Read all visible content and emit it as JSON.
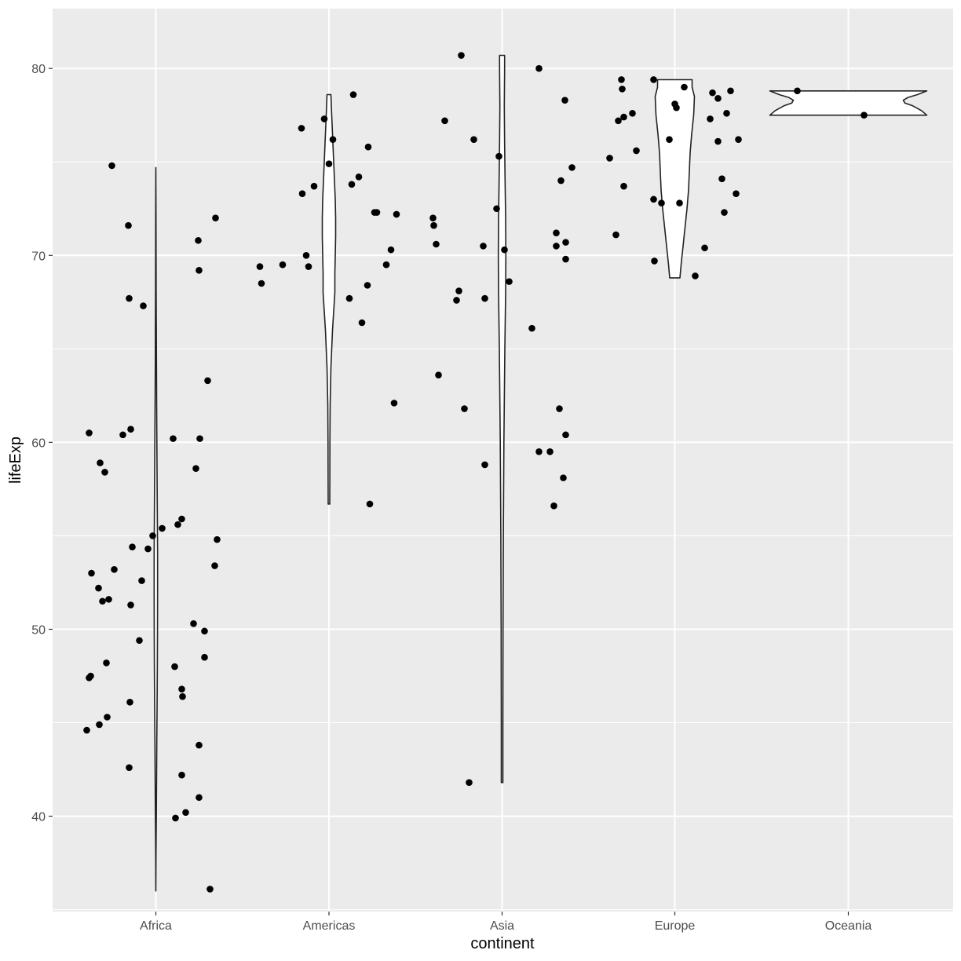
{
  "chart_data": {
    "type": "scatter",
    "geoms": [
      "violin",
      "jitter-points"
    ],
    "xlabel": "continent",
    "ylabel": "lifeExp",
    "categories": [
      "Africa",
      "Americas",
      "Asia",
      "Europe",
      "Oceania"
    ],
    "ylim": [
      34.9,
      83.2
    ],
    "y_ticks": [
      40,
      50,
      60,
      70,
      80
    ],
    "grid": true,
    "colors": {
      "panel": "#ebebeb",
      "grid": "#ffffff",
      "points": "#000000",
      "violin_fill": "#ffffff",
      "violin_line": "#222222",
      "tick_text": "#4d4d4d"
    },
    "violins": [
      {
        "category": "Africa",
        "min": 36.0,
        "max": 74.7,
        "profile": [
          [
            36.0,
            0
          ],
          [
            38,
            0.2
          ],
          [
            40,
            0.6
          ],
          [
            42,
            0.9
          ],
          [
            44,
            1.2
          ],
          [
            46,
            1.6
          ],
          [
            48,
            1.9
          ],
          [
            50,
            2.1
          ],
          [
            52,
            2.2
          ],
          [
            54,
            2.2
          ],
          [
            56,
            1.9
          ],
          [
            58,
            1.6
          ],
          [
            60,
            1.3
          ],
          [
            62,
            1.0
          ],
          [
            64,
            0.75
          ],
          [
            66,
            0.55
          ],
          [
            68,
            0.45
          ],
          [
            70,
            0.35
          ],
          [
            72,
            0.2
          ],
          [
            74.7,
            0
          ]
        ]
      },
      {
        "category": "Americas",
        "min": 56.7,
        "max": 78.6,
        "profile": [
          [
            56.7,
            1
          ],
          [
            58,
            1.1
          ],
          [
            60,
            1.2
          ],
          [
            62,
            1.5
          ],
          [
            64,
            2.5
          ],
          [
            66,
            4.5
          ],
          [
            67,
            6
          ],
          [
            68,
            7.5
          ],
          [
            69,
            7.5
          ],
          [
            70,
            8
          ],
          [
            71,
            8.5
          ],
          [
            72,
            8.5
          ],
          [
            73,
            8
          ],
          [
            74,
            7
          ],
          [
            75,
            6
          ],
          [
            76,
            5
          ],
          [
            77,
            4
          ],
          [
            78,
            3
          ],
          [
            78.6,
            2.5
          ]
        ]
      },
      {
        "category": "Asia",
        "min": 41.8,
        "max": 80.7,
        "profile": [
          [
            41.8,
            1
          ],
          [
            45,
            1
          ],
          [
            50,
            1.2
          ],
          [
            55,
            1.6
          ],
          [
            60,
            2.3
          ],
          [
            65,
            3.5
          ],
          [
            68,
            4.5
          ],
          [
            70,
            4.8
          ],
          [
            72,
            4.5
          ],
          [
            74,
            3.8
          ],
          [
            76,
            3.2
          ],
          [
            78,
            2.8
          ],
          [
            80,
            3.2
          ],
          [
            80.7,
            3.2
          ]
        ]
      },
      {
        "category": "Europe",
        "min": 68.8,
        "max": 79.4,
        "profile": [
          [
            68.8,
            6.5
          ],
          [
            69.5,
            8
          ],
          [
            70.5,
            10.5
          ],
          [
            71.5,
            13
          ],
          [
            72.5,
            15.5
          ],
          [
            73.5,
            17.5
          ],
          [
            74.5,
            18.5
          ],
          [
            75.5,
            19.5
          ],
          [
            76.5,
            21.5
          ],
          [
            77.5,
            24
          ],
          [
            78.5,
            25
          ],
          [
            79,
            22
          ],
          [
            79.4,
            22
          ]
        ]
      },
      {
        "category": "Oceania",
        "min": 77.5,
        "max": 78.8,
        "profile": [
          [
            77.5,
            100
          ],
          [
            77.75,
            93
          ],
          [
            78.0,
            82
          ],
          [
            78.15,
            72
          ],
          [
            78.3,
            70
          ],
          [
            78.45,
            76
          ],
          [
            78.6,
            88
          ],
          [
            78.8,
            100
          ]
        ]
      }
    ],
    "points": [
      {
        "x": "Africa",
        "y": 74.8,
        "dx": -56
      },
      {
        "x": "Africa",
        "y": 71.6,
        "dx": -35
      },
      {
        "x": "Africa",
        "y": 67.7,
        "dx": -34
      },
      {
        "x": "Africa",
        "y": 67.3,
        "dx": -16
      },
      {
        "x": "Africa",
        "y": 60.5,
        "dx": -85
      },
      {
        "x": "Africa",
        "y": 60.4,
        "dx": -42
      },
      {
        "x": "Africa",
        "y": 60.7,
        "dx": -32
      },
      {
        "x": "Africa",
        "y": 58.9,
        "dx": -71
      },
      {
        "x": "Africa",
        "y": 58.4,
        "dx": -65
      },
      {
        "x": "Africa",
        "y": 55.0,
        "dx": -4
      },
      {
        "x": "Africa",
        "y": 55.4,
        "dx": 8
      },
      {
        "x": "Africa",
        "y": 54.3,
        "dx": -10
      },
      {
        "x": "Africa",
        "y": 54.4,
        "dx": -30
      },
      {
        "x": "Africa",
        "y": 53.0,
        "dx": -82
      },
      {
        "x": "Africa",
        "y": 53.2,
        "dx": -53
      },
      {
        "x": "Africa",
        "y": 52.6,
        "dx": -18
      },
      {
        "x": "Africa",
        "y": 52.2,
        "dx": -73
      },
      {
        "x": "Africa",
        "y": 51.5,
        "dx": -68
      },
      {
        "x": "Africa",
        "y": 51.6,
        "dx": -60
      },
      {
        "x": "Africa",
        "y": 51.3,
        "dx": -32
      },
      {
        "x": "Africa",
        "y": 49.4,
        "dx": -21
      },
      {
        "x": "Africa",
        "y": 48.2,
        "dx": -63
      },
      {
        "x": "Africa",
        "y": 47.5,
        "dx": -83
      },
      {
        "x": "Africa",
        "y": 47.4,
        "dx": -85
      },
      {
        "x": "Africa",
        "y": 46.1,
        "dx": -33
      },
      {
        "x": "Africa",
        "y": 45.3,
        "dx": -62
      },
      {
        "x": "Africa",
        "y": 44.9,
        "dx": -72
      },
      {
        "x": "Africa",
        "y": 44.6,
        "dx": -88
      },
      {
        "x": "Africa",
        "y": 42.6,
        "dx": -34
      },
      {
        "x": "Africa",
        "y": 60.2,
        "dx": 22
      },
      {
        "x": "Africa",
        "y": 55.6,
        "dx": 28
      },
      {
        "x": "Africa",
        "y": 55.9,
        "dx": 33
      },
      {
        "x": "Africa",
        "y": 48.0,
        "dx": 24
      },
      {
        "x": "Africa",
        "y": 46.8,
        "dx": 33
      },
      {
        "x": "Africa",
        "y": 46.4,
        "dx": 34
      },
      {
        "x": "Africa",
        "y": 42.2,
        "dx": 33
      },
      {
        "x": "Africa",
        "y": 40.2,
        "dx": 38
      },
      {
        "x": "Africa",
        "y": 39.9,
        "dx": 25
      },
      {
        "x": "Africa",
        "y": 50.3,
        "dx": 48
      },
      {
        "x": "Africa",
        "y": 49.9,
        "dx": 62
      },
      {
        "x": "Africa",
        "y": 48.5,
        "dx": 62
      },
      {
        "x": "Africa",
        "y": 43.8,
        "dx": 55
      },
      {
        "x": "Africa",
        "y": 41.0,
        "dx": 55
      },
      {
        "x": "Africa",
        "y": 36.1,
        "dx": 69
      },
      {
        "x": "Africa",
        "y": 58.6,
        "dx": 51
      },
      {
        "x": "Africa",
        "y": 60.2,
        "dx": 56
      },
      {
        "x": "Africa",
        "y": 63.3,
        "dx": 66
      },
      {
        "x": "Africa",
        "y": 54.8,
        "dx": 78
      },
      {
        "x": "Africa",
        "y": 53.4,
        "dx": 75
      },
      {
        "x": "Africa",
        "y": 70.8,
        "dx": 54
      },
      {
        "x": "Africa",
        "y": 69.2,
        "dx": 55
      },
      {
        "x": "Africa",
        "y": 72.0,
        "dx": 76
      },
      {
        "x": "Americas",
        "y": 76.8,
        "dx": -35
      },
      {
        "x": "Americas",
        "y": 73.3,
        "dx": -34
      },
      {
        "x": "Americas",
        "y": 73.7,
        "dx": -19
      },
      {
        "x": "Americas",
        "y": 70.0,
        "dx": -29
      },
      {
        "x": "Americas",
        "y": 69.4,
        "dx": -26
      },
      {
        "x": "Americas",
        "y": 69.5,
        "dx": -59
      },
      {
        "x": "Americas",
        "y": 69.4,
        "dx": -88
      },
      {
        "x": "Americas",
        "y": 68.5,
        "dx": -86
      },
      {
        "x": "Americas",
        "y": 77.3,
        "dx": -6
      },
      {
        "x": "Americas",
        "y": 76.2,
        "dx": 5
      },
      {
        "x": "Americas",
        "y": 74.9,
        "dx": 0
      },
      {
        "x": "Americas",
        "y": 78.6,
        "dx": 31
      },
      {
        "x": "Americas",
        "y": 73.8,
        "dx": 29
      },
      {
        "x": "Americas",
        "y": 74.2,
        "dx": 38
      },
      {
        "x": "Americas",
        "y": 75.8,
        "dx": 50
      },
      {
        "x": "Americas",
        "y": 72.3,
        "dx": 58
      },
      {
        "x": "Americas",
        "y": 72.3,
        "dx": 61
      },
      {
        "x": "Americas",
        "y": 72.2,
        "dx": 86
      },
      {
        "x": "Americas",
        "y": 70.3,
        "dx": 79
      },
      {
        "x": "Americas",
        "y": 69.5,
        "dx": 73
      },
      {
        "x": "Americas",
        "y": 68.4,
        "dx": 49
      },
      {
        "x": "Americas",
        "y": 67.7,
        "dx": 26
      },
      {
        "x": "Americas",
        "y": 66.4,
        "dx": 42
      },
      {
        "x": "Americas",
        "y": 62.1,
        "dx": 83
      },
      {
        "x": "Americas",
        "y": 56.7,
        "dx": 52
      },
      {
        "x": "Asia",
        "y": 80.7,
        "dx": -52
      },
      {
        "x": "Asia",
        "y": 77.2,
        "dx": -73
      },
      {
        "x": "Asia",
        "y": 76.2,
        "dx": -36
      },
      {
        "x": "Asia",
        "y": 72.0,
        "dx": -88
      },
      {
        "x": "Asia",
        "y": 71.6,
        "dx": -87
      },
      {
        "x": "Asia",
        "y": 70.6,
        "dx": -84
      },
      {
        "x": "Asia",
        "y": 70.5,
        "dx": -24
      },
      {
        "x": "Asia",
        "y": 68.1,
        "dx": -55
      },
      {
        "x": "Asia",
        "y": 67.6,
        "dx": -58
      },
      {
        "x": "Asia",
        "y": 67.7,
        "dx": -22
      },
      {
        "x": "Asia",
        "y": 63.6,
        "dx": -81
      },
      {
        "x": "Asia",
        "y": 61.8,
        "dx": -48
      },
      {
        "x": "Asia",
        "y": 58.8,
        "dx": -22
      },
      {
        "x": "Asia",
        "y": 41.8,
        "dx": -42
      },
      {
        "x": "Asia",
        "y": 75.3,
        "dx": -4
      },
      {
        "x": "Asia",
        "y": 72.5,
        "dx": -7
      },
      {
        "x": "Asia",
        "y": 70.3,
        "dx": 3
      },
      {
        "x": "Asia",
        "y": 68.6,
        "dx": 9
      },
      {
        "x": "Asia",
        "y": 80.0,
        "dx": 47
      },
      {
        "x": "Asia",
        "y": 78.3,
        "dx": 80
      },
      {
        "x": "Asia",
        "y": 74.7,
        "dx": 89
      },
      {
        "x": "Asia",
        "y": 74.0,
        "dx": 75
      },
      {
        "x": "Asia",
        "y": 71.2,
        "dx": 69
      },
      {
        "x": "Asia",
        "y": 70.7,
        "dx": 81
      },
      {
        "x": "Asia",
        "y": 70.5,
        "dx": 69
      },
      {
        "x": "Asia",
        "y": 69.8,
        "dx": 81
      },
      {
        "x": "Asia",
        "y": 66.1,
        "dx": 38
      },
      {
        "x": "Asia",
        "y": 61.8,
        "dx": 73
      },
      {
        "x": "Asia",
        "y": 60.4,
        "dx": 81
      },
      {
        "x": "Asia",
        "y": 59.5,
        "dx": 47
      },
      {
        "x": "Asia",
        "y": 59.5,
        "dx": 61
      },
      {
        "x": "Asia",
        "y": 58.1,
        "dx": 78
      },
      {
        "x": "Asia",
        "y": 56.6,
        "dx": 66
      },
      {
        "x": "Europe",
        "y": 79.4,
        "dx": -68
      },
      {
        "x": "Europe",
        "y": 78.9,
        "dx": -67
      },
      {
        "x": "Europe",
        "y": 77.4,
        "dx": -65
      },
      {
        "x": "Europe",
        "y": 77.2,
        "dx": -72
      },
      {
        "x": "Europe",
        "y": 77.6,
        "dx": -54
      },
      {
        "x": "Europe",
        "y": 75.6,
        "dx": -49
      },
      {
        "x": "Europe",
        "y": 75.2,
        "dx": -83
      },
      {
        "x": "Europe",
        "y": 73.7,
        "dx": -65
      },
      {
        "x": "Europe",
        "y": 71.1,
        "dx": -75
      },
      {
        "x": "Europe",
        "y": 73.0,
        "dx": -27
      },
      {
        "x": "Europe",
        "y": 72.8,
        "dx": -17
      },
      {
        "x": "Europe",
        "y": 69.7,
        "dx": -26
      },
      {
        "x": "Europe",
        "y": 79.4,
        "dx": -27
      },
      {
        "x": "Europe",
        "y": 76.2,
        "dx": -7
      },
      {
        "x": "Europe",
        "y": 78.1,
        "dx": 0
      },
      {
        "x": "Europe",
        "y": 77.9,
        "dx": 2
      },
      {
        "x": "Europe",
        "y": 72.8,
        "dx": 6
      },
      {
        "x": "Europe",
        "y": 79.0,
        "dx": 12
      },
      {
        "x": "Europe",
        "y": 78.7,
        "dx": 48
      },
      {
        "x": "Europe",
        "y": 78.4,
        "dx": 55
      },
      {
        "x": "Europe",
        "y": 78.8,
        "dx": 71
      },
      {
        "x": "Europe",
        "y": 77.6,
        "dx": 66
      },
      {
        "x": "Europe",
        "y": 77.3,
        "dx": 45
      },
      {
        "x": "Europe",
        "y": 76.1,
        "dx": 55
      },
      {
        "x": "Europe",
        "y": 76.2,
        "dx": 81
      },
      {
        "x": "Europe",
        "y": 74.1,
        "dx": 60
      },
      {
        "x": "Europe",
        "y": 73.3,
        "dx": 78
      },
      {
        "x": "Europe",
        "y": 72.3,
        "dx": 63
      },
      {
        "x": "Europe",
        "y": 70.4,
        "dx": 38
      },
      {
        "x": "Europe",
        "y": 68.9,
        "dx": 26
      },
      {
        "x": "Oceania",
        "y": 78.8,
        "dx": -65
      },
      {
        "x": "Oceania",
        "y": 77.5,
        "dx": 20
      }
    ]
  }
}
